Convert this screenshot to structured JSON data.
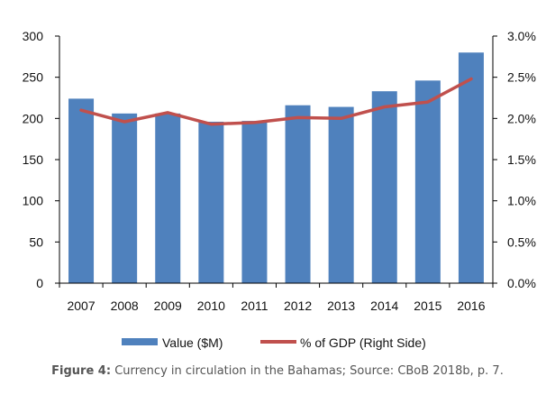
{
  "chart_data": {
    "type": "bar",
    "categories": [
      "2007",
      "2008",
      "2009",
      "2010",
      "2011",
      "2012",
      "2013",
      "2014",
      "2015",
      "2016"
    ],
    "series": [
      {
        "name": "Value ($M)",
        "type": "bar",
        "axis": "left",
        "color": "#4F81BD",
        "values": [
          224,
          206,
          206,
          196,
          197,
          216,
          214,
          233,
          246,
          280
        ]
      },
      {
        "name": "% of GDP (Right Side)",
        "type": "line",
        "axis": "right",
        "color": "#C0504D",
        "values": [
          2.1,
          1.96,
          2.07,
          1.93,
          1.95,
          2.01,
          2.0,
          2.14,
          2.2,
          2.48
        ]
      }
    ],
    "y_left": {
      "lim": [
        0,
        300
      ],
      "ticks": [
        0,
        50,
        100,
        150,
        200,
        250,
        300
      ],
      "tick_labels": [
        "0",
        "50",
        "100",
        "150",
        "200",
        "250",
        "300"
      ]
    },
    "y_right": {
      "lim": [
        0,
        3.0
      ],
      "ticks": [
        0,
        0.5,
        1.0,
        1.5,
        2.0,
        2.5,
        3.0
      ],
      "tick_labels": [
        "0.0%",
        "0.5%",
        "1.0%",
        "1.5%",
        "2.0%",
        "2.5%",
        "3.0%"
      ]
    },
    "grid": false,
    "legend_position": "bottom",
    "legend": [
      {
        "label": "Value ($M)",
        "marker": "bar",
        "color": "#4F81BD"
      },
      {
        "label": "% of GDP (Right Side)",
        "marker": "line",
        "color": "#C0504D"
      }
    ]
  },
  "caption": {
    "label": "Figure 4:",
    "text": " Currency in circulation in the Bahamas; Source: CBoB 2018b, p. 7."
  }
}
